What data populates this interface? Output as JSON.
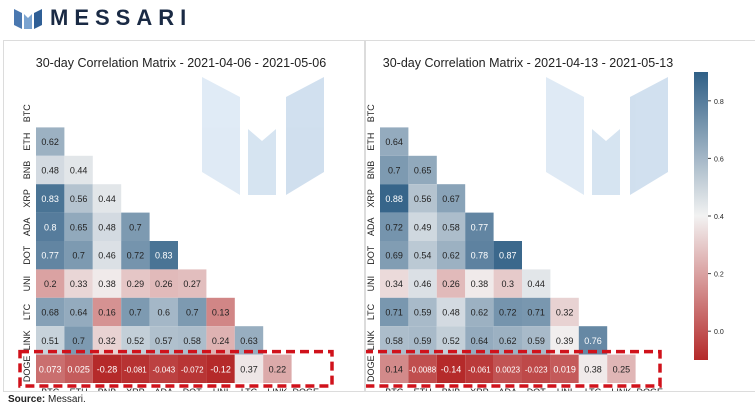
{
  "brand": {
    "name": "MESSARI"
  },
  "source": {
    "label": "Source:",
    "text": "Messari."
  },
  "colorbar": {
    "ticks": [
      "0.0",
      "0.2",
      "0.4",
      "0.6",
      "0.8"
    ]
  },
  "colors": {
    "low": "#b52a2a",
    "mid": "#f2f2f2",
    "high": "#2f5f86",
    "highlight": "#d0121b"
  },
  "chart_data": [
    {
      "type": "heatmap",
      "title": "30-day Correlation Matrix - 2021-04-06 - 2021-05-06",
      "labels": [
        "BTC",
        "ETH",
        "BNB",
        "XRP",
        "ADA",
        "DOT",
        "UNI",
        "LTC",
        "LINK",
        "DOGE"
      ],
      "rows": [
        [],
        [
          "0.62"
        ],
        [
          "0.48",
          "0.44"
        ],
        [
          "0.83",
          "0.56",
          "0.44"
        ],
        [
          "0.8",
          "0.65",
          "0.48",
          "0.7"
        ],
        [
          "0.77",
          "0.7",
          "0.46",
          "0.72",
          "0.83"
        ],
        [
          "0.2",
          "0.33",
          "0.38",
          "0.29",
          "0.26",
          "0.27"
        ],
        [
          "0.68",
          "0.64",
          "0.16",
          "0.7",
          "0.6",
          "0.7",
          "0.13"
        ],
        [
          "0.51",
          "0.7",
          "0.32",
          "0.52",
          "0.57",
          "0.58",
          "0.24",
          "0.63"
        ],
        [
          "0.073",
          "0.025",
          "-0.28",
          "-0.081",
          "-0.043",
          "-0.072",
          "-0.12",
          "0.37",
          "0.22"
        ]
      ],
      "highlighted_row": "DOGE"
    },
    {
      "type": "heatmap",
      "title": "30-day Correlation Matrix - 2021-04-13 - 2021-05-13",
      "labels": [
        "BTC",
        "ETH",
        "BNB",
        "XRP",
        "ADA",
        "DOT",
        "UNI",
        "LTC",
        "LINK",
        "DOGE"
      ],
      "rows": [
        [],
        [
          "0.64"
        ],
        [
          "0.7",
          "0.65"
        ],
        [
          "0.88",
          "0.56",
          "0.67"
        ],
        [
          "0.72",
          "0.49",
          "0.58",
          "0.77"
        ],
        [
          "0.69",
          "0.54",
          "0.62",
          "0.78",
          "0.87"
        ],
        [
          "0.34",
          "0.46",
          "0.26",
          "0.38",
          "0.3",
          "0.44"
        ],
        [
          "0.71",
          "0.59",
          "0.48",
          "0.62",
          "0.72",
          "0.71",
          "0.32"
        ],
        [
          "0.58",
          "0.59",
          "0.52",
          "0.64",
          "0.62",
          "0.59",
          "0.39",
          "0.76"
        ],
        [
          "0.14",
          "-0.0088",
          "-0.14",
          "-0.061",
          "0.0023",
          "-0.023",
          "0.019",
          "0.38",
          "0.25"
        ]
      ],
      "highlighted_row": "DOGE",
      "colorbar_range": [
        -0.1,
        0.9
      ]
    }
  ]
}
